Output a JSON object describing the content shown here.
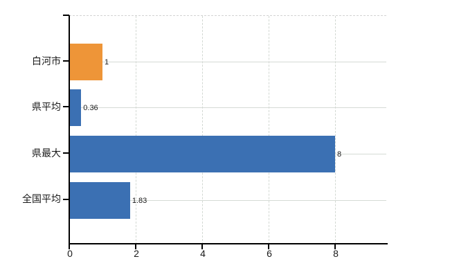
{
  "chart_data": {
    "type": "bar",
    "orientation": "horizontal",
    "title": "",
    "categories": [
      "白河市",
      "県平均",
      "県最大",
      "全国平均"
    ],
    "values": [
      1,
      0.36,
      8,
      1.83
    ],
    "value_labels": [
      "1",
      "0.36",
      "8",
      "1.83"
    ],
    "series": [
      {
        "name": "value",
        "values": [
          1,
          0.36,
          8,
          1.83
        ]
      }
    ],
    "bar_colors": [
      "#ee9538",
      "#3b70b3",
      "#3b70b3",
      "#3b70b3"
    ],
    "x_ticks": [
      "0",
      "2",
      "4",
      "6",
      "8"
    ],
    "x_tick_values": [
      0,
      2,
      4,
      6,
      8
    ],
    "xlim": [
      0,
      9.55
    ],
    "xlabel": "",
    "ylabel": "",
    "grid": true,
    "legend": false
  },
  "colors": {
    "highlight_bar": "#ee9538",
    "default_bar": "#3b70b3",
    "gridline": "#d5dad5",
    "axis": "#000000",
    "text": "#1a1a1a"
  }
}
